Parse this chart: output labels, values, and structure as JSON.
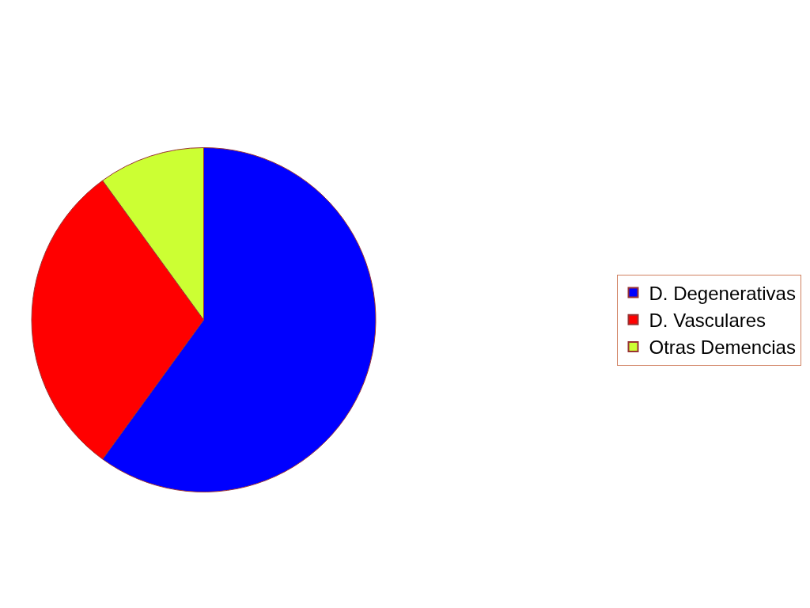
{
  "chart_data": {
    "type": "pie",
    "categories": [
      "D. Degenerativas",
      "D. Vasculares",
      "Otras Demencias"
    ],
    "values": [
      60,
      30,
      10
    ],
    "colors": [
      "#0000ff",
      "#ff0000",
      "#ccff33"
    ],
    "legend": "right"
  }
}
